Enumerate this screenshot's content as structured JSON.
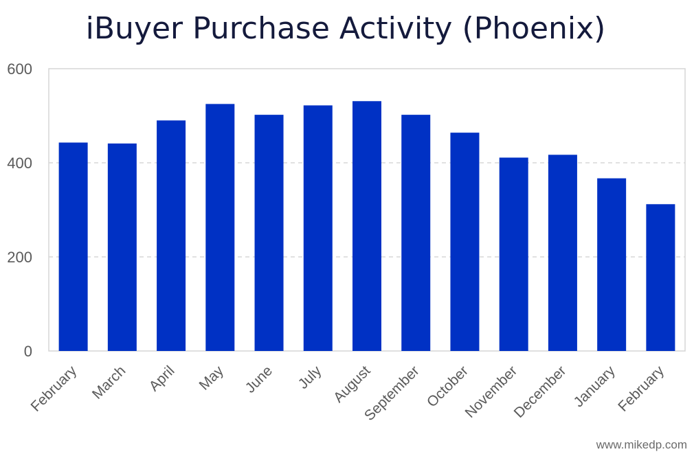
{
  "chart_data": {
    "type": "bar",
    "title": "iBuyer Purchase Activity (Phoenix)",
    "xlabel": "",
    "ylabel": "",
    "categories": [
      "February",
      "March",
      "April",
      "May",
      "June",
      "July",
      "August",
      "September",
      "October",
      "November",
      "December",
      "January",
      "February"
    ],
    "values": [
      443,
      441,
      490,
      525,
      502,
      522,
      531,
      502,
      464,
      411,
      417,
      367,
      312
    ],
    "ylim": [
      0,
      600
    ],
    "yticks": [
      "0",
      "200",
      "400",
      "600"
    ],
    "grid": true,
    "legend": "none",
    "bar_color": "#0031c4"
  },
  "watermark": "www.mikedp.com"
}
